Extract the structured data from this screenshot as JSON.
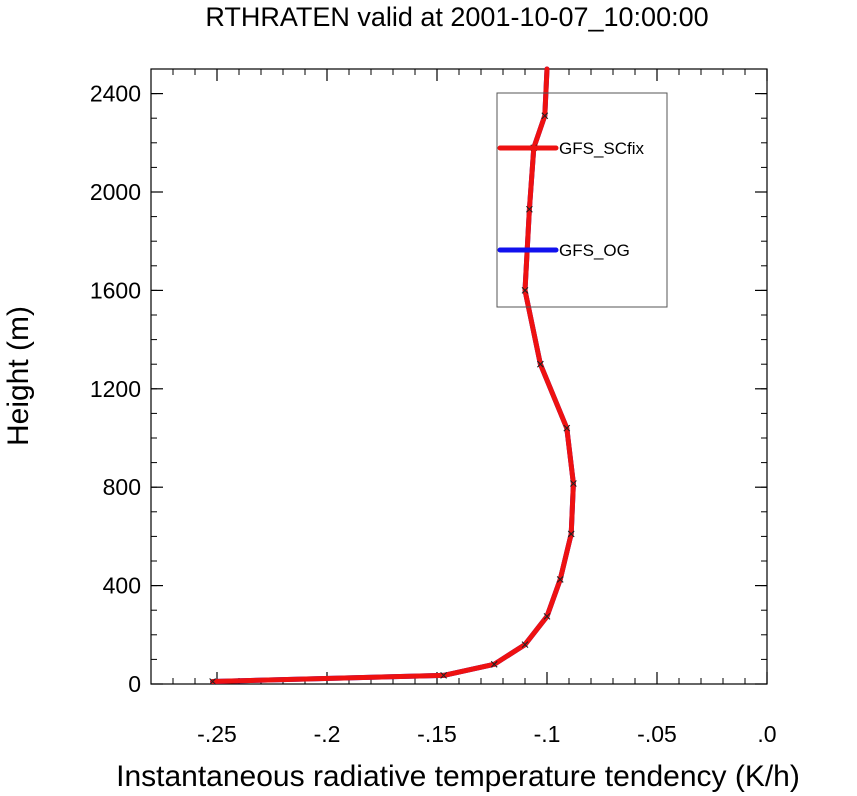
{
  "chart_data": {
    "type": "line",
    "title": "RTHRATEN valid at 2001-10-07_10:00:00",
    "xlabel": "Instantaneous radiative temperature tendency (K/h)",
    "ylabel": "Height (m)",
    "xlim": [
      -0.28,
      0.0
    ],
    "ylim": [
      0,
      2500
    ],
    "x_ticks": [
      -0.25,
      -0.2,
      -0.15,
      -0.1,
      -0.05,
      0.0
    ],
    "x_tick_labels": [
      "-.25",
      "-.2",
      "-.15",
      "-.1",
      "-.05",
      ".0"
    ],
    "y_ticks": [
      0,
      400,
      800,
      1200,
      1600,
      2000,
      2400
    ],
    "y_tick_labels": [
      "0",
      "400",
      "800",
      "1200",
      "1600",
      "2000",
      "2400"
    ],
    "grid": false,
    "legend_position": "top-right",
    "series": [
      {
        "name": "GFS_SCfix",
        "color": "#ee1111",
        "marker": "x",
        "points": [
          {
            "x": -0.252,
            "y": 10
          },
          {
            "x": -0.147,
            "y": 35
          },
          {
            "x": -0.124,
            "y": 80
          },
          {
            "x": -0.11,
            "y": 160
          },
          {
            "x": -0.1,
            "y": 275
          },
          {
            "x": -0.094,
            "y": 425
          },
          {
            "x": -0.089,
            "y": 610
          },
          {
            "x": -0.088,
            "y": 815
          },
          {
            "x": -0.091,
            "y": 1040
          },
          {
            "x": -0.103,
            "y": 1300
          },
          {
            "x": -0.11,
            "y": 1600
          },
          {
            "x": -0.108,
            "y": 1930
          },
          {
            "x": -0.106,
            "y": 2180
          },
          {
            "x": -0.101,
            "y": 2310
          },
          {
            "x": -0.1,
            "y": 2500
          }
        ]
      },
      {
        "name": "GFS_OG",
        "color": "#1111ee",
        "marker": "x",
        "points": [
          {
            "x": -0.252,
            "y": 10
          },
          {
            "x": -0.147,
            "y": 35
          },
          {
            "x": -0.124,
            "y": 80
          },
          {
            "x": -0.11,
            "y": 160
          },
          {
            "x": -0.1,
            "y": 275
          },
          {
            "x": -0.094,
            "y": 425
          },
          {
            "x": -0.089,
            "y": 610
          },
          {
            "x": -0.088,
            "y": 815
          },
          {
            "x": -0.091,
            "y": 1040
          },
          {
            "x": -0.103,
            "y": 1300
          },
          {
            "x": -0.11,
            "y": 1600
          },
          {
            "x": -0.108,
            "y": 1930
          },
          {
            "x": -0.106,
            "y": 2180
          },
          {
            "x": -0.101,
            "y": 2310
          },
          {
            "x": -0.1,
            "y": 2500
          }
        ]
      }
    ]
  }
}
